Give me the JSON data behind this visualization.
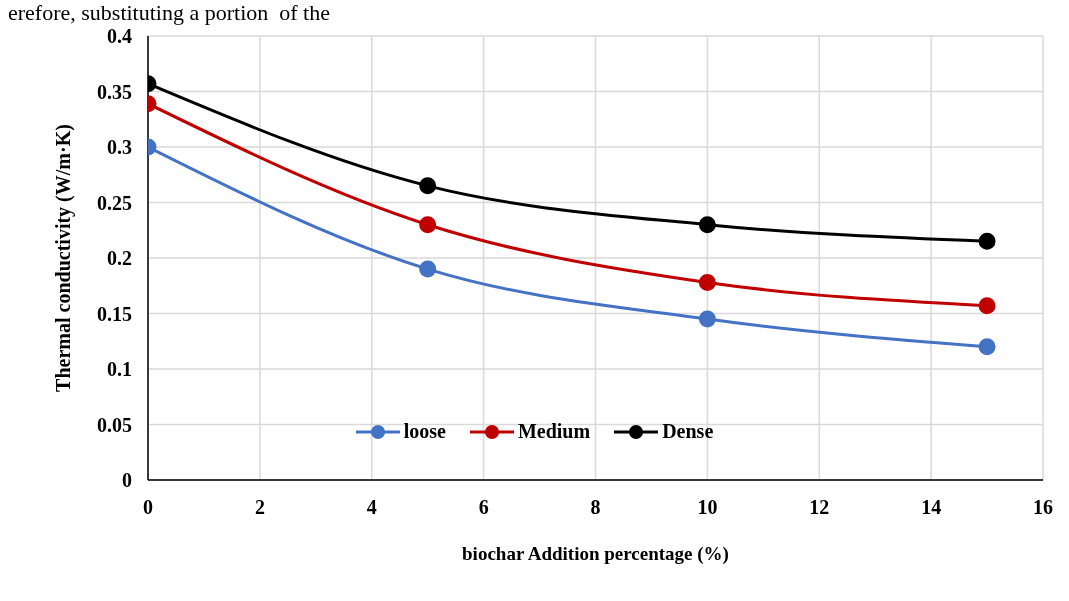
{
  "chart_data": {
    "type": "line",
    "xlabel": "biochar Addition percentage (%)",
    "ylabel": "Thermal conductivity (W/m·K)",
    "annotations": [
      "erefore, substituting a portion  of the"
    ],
    "x": [
      0,
      5,
      10,
      15
    ],
    "series": [
      {
        "name": "loose",
        "color": "#4472c4",
        "values": [
          0.3,
          0.19,
          0.145,
          0.12
        ]
      },
      {
        "name": "Medium",
        "color": "#c00000",
        "values": [
          0.339,
          0.23,
          0.178,
          0.157
        ]
      },
      {
        "name": "Dense",
        "color": "#000000",
        "values": [
          0.357,
          0.265,
          0.23,
          0.215
        ]
      }
    ],
    "xlim": [
      0,
      16
    ],
    "xticks": [
      0,
      2,
      4,
      6,
      8,
      10,
      12,
      14,
      16
    ],
    "ylim": [
      0,
      0.4
    ],
    "yticks": [
      0,
      0.05,
      0.1,
      0.15,
      0.2,
      0.25,
      0.3,
      0.35,
      0.4
    ],
    "grid": true,
    "legend": "bottom",
    "marker": "circle",
    "line_style": "solid"
  }
}
